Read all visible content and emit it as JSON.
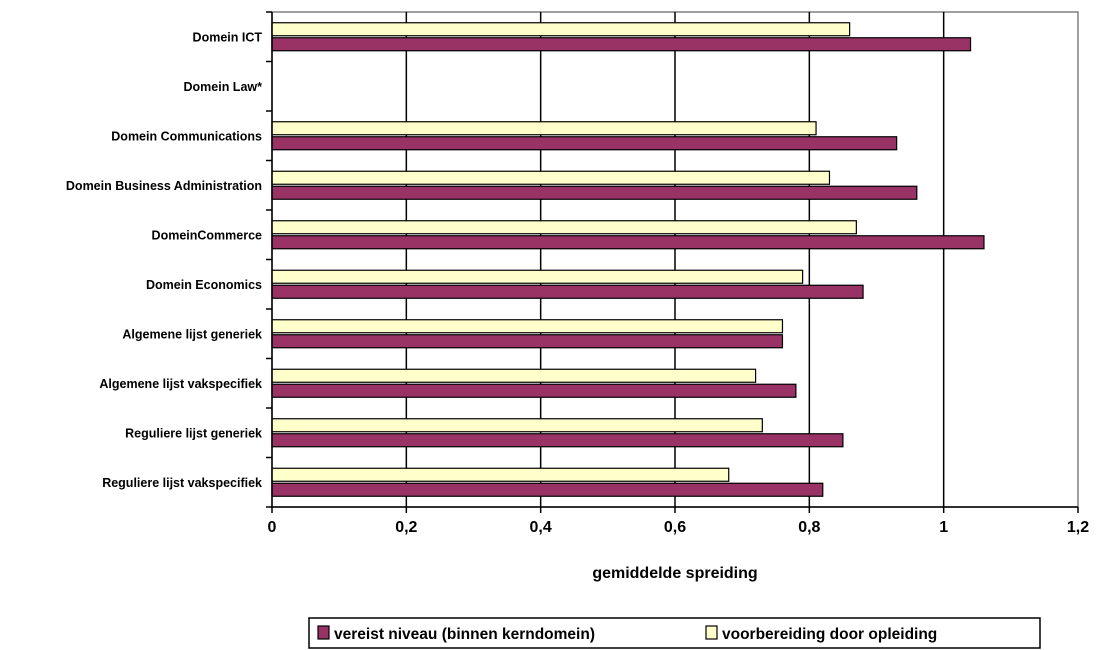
{
  "chart_data": {
    "type": "bar",
    "orientation": "horizontal",
    "categories": [
      "Domein ICT",
      "Domein Law*",
      "Domein Communications",
      "Domein Business Administration",
      "DomeinCommerce",
      "Domein Economics",
      "Algemene lijst generiek",
      "Algemene lijst vakspecifiek",
      "Reguliere lijst generiek",
      "Reguliere lijst vakspecifiek"
    ],
    "series": [
      {
        "name": "vereist niveau (binnen kerndomein)",
        "color": "#993366",
        "values": [
          1.04,
          null,
          0.93,
          0.96,
          1.06,
          0.88,
          0.76,
          0.78,
          0.85,
          0.82
        ]
      },
      {
        "name": "voorbereiding door opleiding",
        "color": "#FFFFCC",
        "values": [
          0.86,
          null,
          0.81,
          0.83,
          0.87,
          0.79,
          0.76,
          0.72,
          0.73,
          0.68
        ]
      }
    ],
    "xlabel": "gemiddelde spreiding",
    "ylabel": "",
    "xlim": [
      0,
      1.2
    ],
    "xticks": [
      "0",
      "0,2",
      "0,4",
      "0,6",
      "0,8",
      "1",
      "1,2"
    ],
    "grid": "vertical major gridlines",
    "legend_position": "bottom"
  }
}
